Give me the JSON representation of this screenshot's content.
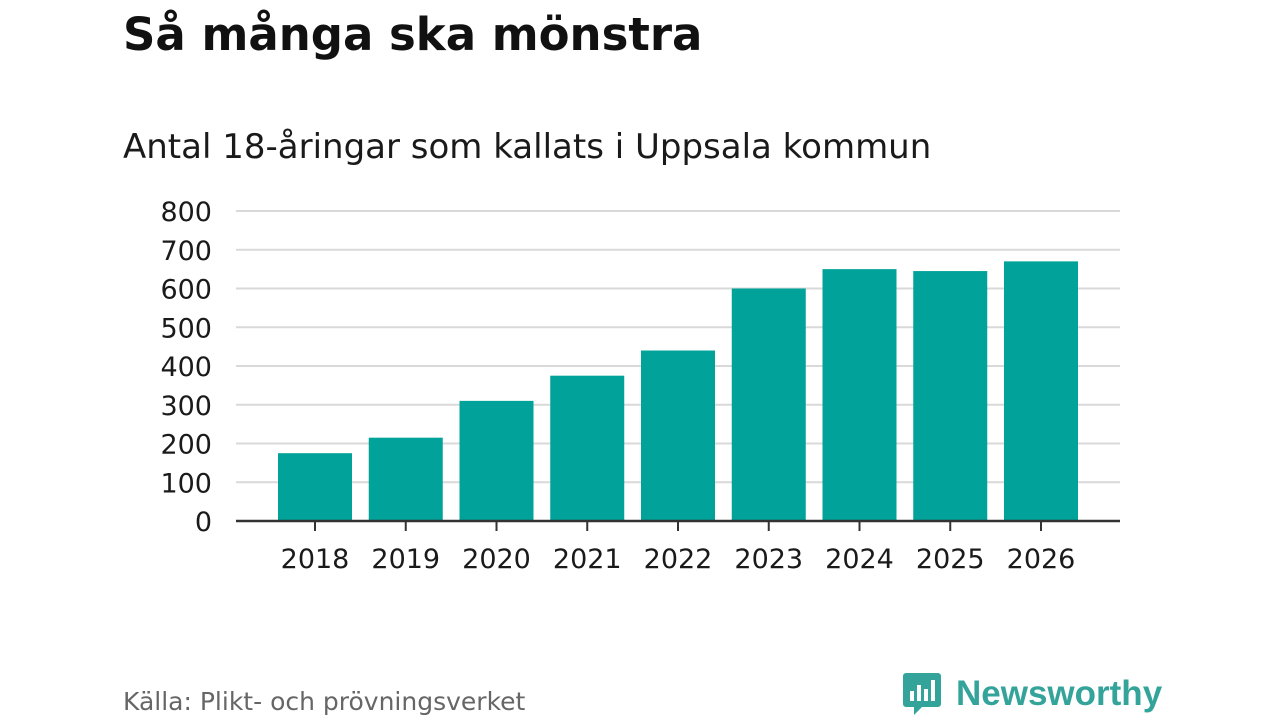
{
  "title": "Så många ska mönstra",
  "subtitle": "Antal 18-åringar som kallats i Uppsala kommun",
  "source": "Källa: Plikt- och prövningsverket",
  "brand": {
    "name": "Newsworthy",
    "icon": "newsworthy-logo-icon",
    "color": "#34a39a"
  },
  "colors": {
    "bar": "#00a299",
    "grid": "#d9d9d9",
    "axis": "#333333",
    "text": "#1a1a1a"
  },
  "chart_data": {
    "type": "bar",
    "title": "Så många ska mönstra",
    "subtitle": "Antal 18-åringar som kallats i Uppsala kommun",
    "categories": [
      "2018",
      "2019",
      "2020",
      "2021",
      "2022",
      "2023",
      "2024",
      "2025",
      "2026"
    ],
    "values": [
      175,
      215,
      310,
      375,
      440,
      600,
      650,
      645,
      670
    ],
    "ylim": [
      0,
      800
    ],
    "yticks": [
      0,
      100,
      200,
      300,
      400,
      500,
      600,
      700,
      800
    ],
    "xlabel": "",
    "ylabel": "",
    "grid": true,
    "legend": "none"
  }
}
